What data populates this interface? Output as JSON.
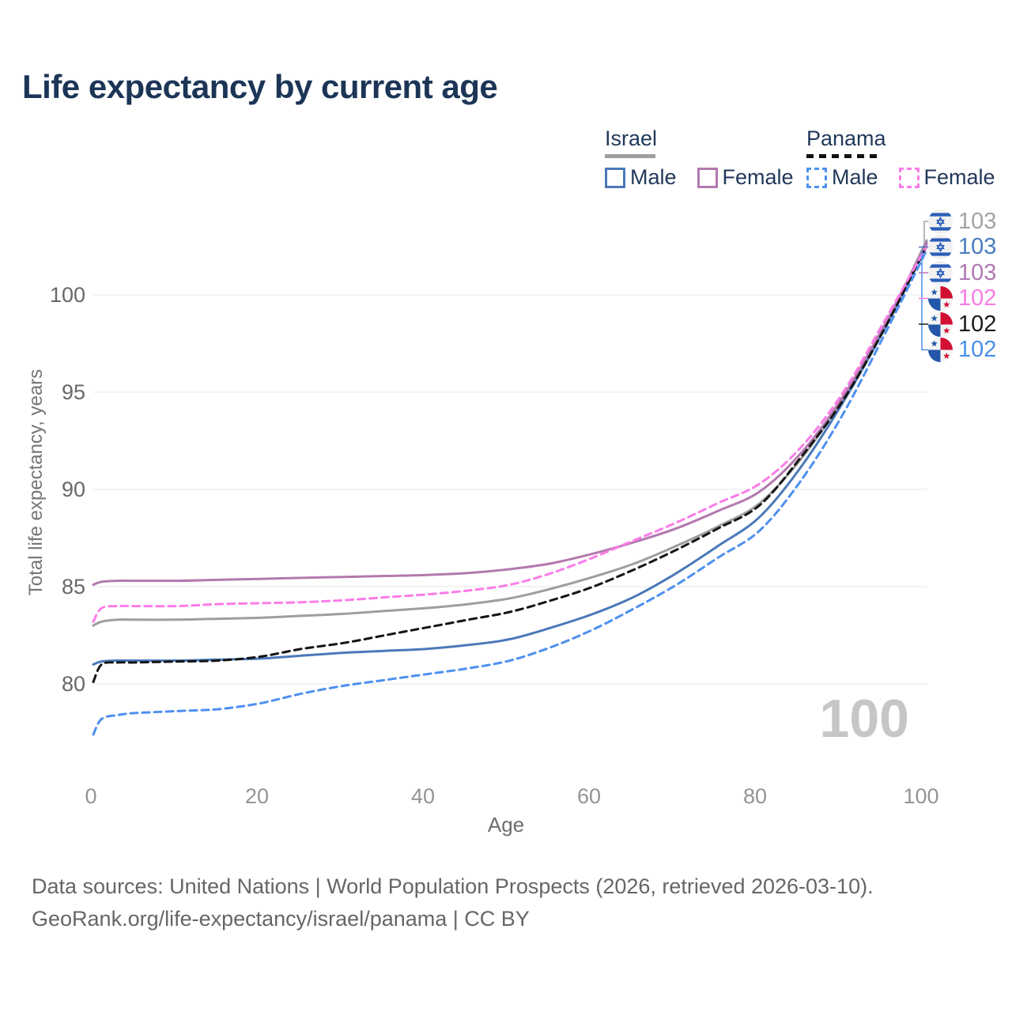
{
  "title": "Life expectancy by current age",
  "legend": {
    "groups": [
      {
        "country": "Israel",
        "underline_style": "solid",
        "underline_color": "#9e9e9e",
        "items": [
          {
            "label": "Male",
            "color": "#4b79b8",
            "dashed": false
          },
          {
            "label": "Female",
            "color": "#b279ae",
            "dashed": false
          }
        ]
      },
      {
        "country": "Panama",
        "underline_style": "dashed",
        "underline_color": "#111111",
        "items": [
          {
            "label": "Male",
            "color": "#4e90f0",
            "dashed": true
          },
          {
            "label": "Female",
            "color": "#fb7ce8",
            "dashed": true
          }
        ]
      }
    ]
  },
  "chart_data": {
    "type": "line",
    "title": "Life expectancy by current age",
    "xlabel": "Age",
    "ylabel": "Total life expectancy, years",
    "xlim": [
      0,
      100
    ],
    "ylim": [
      77,
      103.5
    ],
    "x_ticks": [
      "0",
      "20",
      "40",
      "60",
      "80",
      "100"
    ],
    "y_ticks": [
      "80",
      "85",
      "90",
      "95",
      "100"
    ],
    "grid": "horizontal-only",
    "x": [
      0,
      1,
      3,
      5,
      10,
      15,
      20,
      25,
      30,
      35,
      40,
      45,
      50,
      55,
      60,
      65,
      70,
      75,
      80,
      85,
      90,
      95,
      100
    ],
    "series": [
      {
        "id": "israel-total",
        "country": "Israel",
        "sex": "Both",
        "line": "solid",
        "color": "#9e9e9e",
        "values": [
          83.0,
          83.2,
          83.3,
          83.3,
          83.3,
          83.35,
          83.4,
          83.5,
          83.6,
          83.75,
          83.9,
          84.1,
          84.4,
          84.9,
          85.5,
          86.2,
          87.1,
          88.1,
          89.3,
          91.6,
          94.7,
          98.4,
          102.8
        ],
        "end_label": "103"
      },
      {
        "id": "israel-male",
        "country": "Israel",
        "sex": "Male",
        "line": "solid",
        "color": "#4b79b8",
        "values": [
          81.0,
          81.15,
          81.2,
          81.2,
          81.2,
          81.25,
          81.3,
          81.45,
          81.6,
          81.7,
          81.8,
          82.0,
          82.3,
          82.9,
          83.6,
          84.5,
          85.7,
          87.1,
          88.6,
          91.2,
          94.5,
          98.3,
          102.65
        ],
        "end_label": "103"
      },
      {
        "id": "israel-female",
        "country": "Israel",
        "sex": "Female",
        "line": "solid",
        "color": "#b279ae",
        "values": [
          85.1,
          85.25,
          85.3,
          85.3,
          85.3,
          85.35,
          85.4,
          85.45,
          85.5,
          85.55,
          85.6,
          85.7,
          85.9,
          86.2,
          86.7,
          87.3,
          88.0,
          88.9,
          89.9,
          91.9,
          94.8,
          98.5,
          102.7
        ],
        "end_label": "103"
      },
      {
        "id": "panama-total",
        "country": "Panama",
        "sex": "Both",
        "line": "dashed",
        "color": "#141414",
        "values": [
          80.1,
          81.0,
          81.1,
          81.1,
          81.15,
          81.2,
          81.4,
          81.8,
          82.1,
          82.5,
          82.9,
          83.3,
          83.7,
          84.3,
          85.0,
          85.9,
          86.9,
          88.0,
          89.2,
          91.7,
          94.6,
          98.3,
          102.5
        ],
        "end_label": "102"
      },
      {
        "id": "panama-male",
        "country": "Panama",
        "sex": "Male",
        "line": "dashed",
        "color": "#4e90f0",
        "values": [
          77.4,
          78.2,
          78.4,
          78.5,
          78.6,
          78.7,
          79.0,
          79.5,
          79.9,
          80.2,
          80.5,
          80.8,
          81.2,
          81.9,
          82.8,
          83.9,
          85.1,
          86.5,
          87.9,
          90.5,
          93.9,
          98.0,
          102.3
        ],
        "end_label": "102"
      },
      {
        "id": "panama-female",
        "country": "Panama",
        "sex": "Female",
        "line": "dashed",
        "color": "#fb7ce8",
        "values": [
          83.2,
          83.9,
          84.0,
          84.0,
          84.0,
          84.1,
          84.15,
          84.2,
          84.3,
          84.45,
          84.6,
          84.8,
          85.1,
          85.7,
          86.5,
          87.4,
          88.3,
          89.3,
          90.3,
          92.2,
          95.0,
          98.7,
          102.5
        ],
        "end_label": "102"
      }
    ],
    "legend_position": "top-right"
  },
  "end_labels": [
    {
      "flag": "israel",
      "value": "103",
      "color": "#a3a3a3"
    },
    {
      "flag": "israel",
      "value": "103",
      "color": "#4a7dbd"
    },
    {
      "flag": "israel",
      "value": "103",
      "color": "#b07ab3"
    },
    {
      "flag": "panama",
      "value": "102",
      "color": "#fb7ce8"
    },
    {
      "flag": "panama",
      "value": "102",
      "color": "#1a1a1a"
    },
    {
      "flag": "panama",
      "value": "102",
      "color": "#4a8fe8"
    }
  ],
  "watermark": "100",
  "footer": {
    "line1": "Data sources: United Nations | World Population Prospects (2026, retrieved 2026-03-10).",
    "line2": "GeoRank.org/life-expectancy/israel/panama | CC BY"
  }
}
